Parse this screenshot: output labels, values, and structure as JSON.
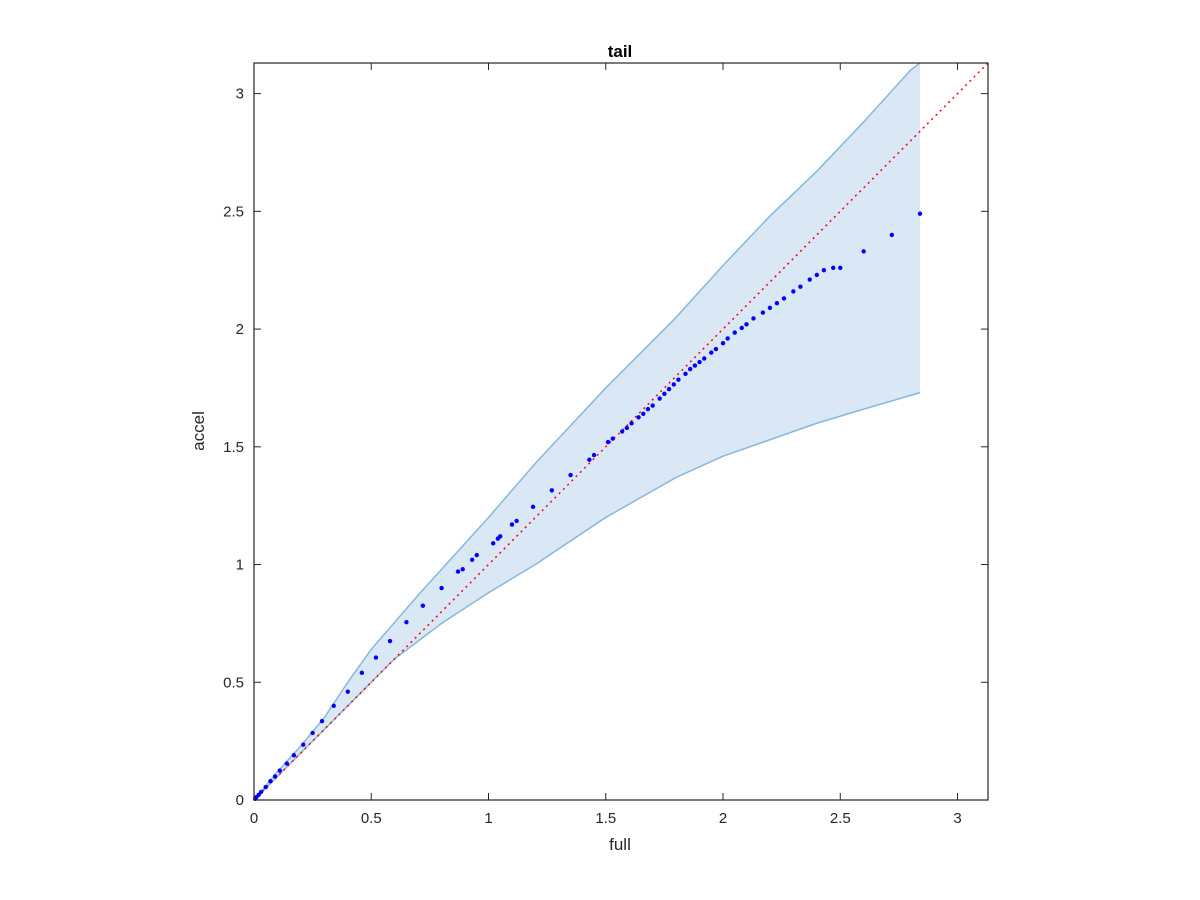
{
  "chart_data": {
    "type": "scatter",
    "title": "tail",
    "xlabel": "full",
    "ylabel": "accel",
    "xlim": [
      0,
      3.13
    ],
    "ylim": [
      0,
      3.13
    ],
    "xticks": [
      0,
      0.5,
      1,
      1.5,
      2,
      2.5,
      3
    ],
    "yticks": [
      0,
      0.5,
      1,
      1.5,
      2,
      2.5,
      3
    ],
    "xtick_labels": [
      "0",
      "0.5",
      "1",
      "1.5",
      "2",
      "2.5",
      "3"
    ],
    "ytick_labels": [
      "0",
      "0.5",
      "1",
      "1.5",
      "2",
      "2.5",
      "3"
    ],
    "grid": false,
    "colors": {
      "points": "#0000ff",
      "reference_line": "#ff0000",
      "band_fill": "#d9e8f4",
      "band_edge": "#86b8dd",
      "axes": "#262626"
    },
    "reference_line": {
      "style": "dotted",
      "points": [
        [
          0,
          0
        ],
        [
          3.13,
          3.13
        ]
      ]
    },
    "band": {
      "upper": [
        [
          0,
          0
        ],
        [
          0.05,
          0.06
        ],
        [
          0.1,
          0.12
        ],
        [
          0.2,
          0.23
        ],
        [
          0.3,
          0.35
        ],
        [
          0.4,
          0.5
        ],
        [
          0.5,
          0.64
        ],
        [
          0.7,
          0.87
        ],
        [
          1.0,
          1.2
        ],
        [
          1.2,
          1.43
        ],
        [
          1.5,
          1.75
        ],
        [
          1.8,
          2.05
        ],
        [
          2.0,
          2.27
        ],
        [
          2.2,
          2.48
        ],
        [
          2.4,
          2.67
        ],
        [
          2.6,
          2.88
        ],
        [
          2.8,
          3.1
        ],
        [
          2.84,
          3.13
        ]
      ],
      "lower": [
        [
          0,
          0
        ],
        [
          0.1,
          0.1
        ],
        [
          0.2,
          0.2
        ],
        [
          0.4,
          0.4
        ],
        [
          0.6,
          0.6
        ],
        [
          0.8,
          0.75
        ],
        [
          1.0,
          0.88
        ],
        [
          1.2,
          1.0
        ],
        [
          1.5,
          1.2
        ],
        [
          1.8,
          1.37
        ],
        [
          2.0,
          1.46
        ],
        [
          2.2,
          1.53
        ],
        [
          2.4,
          1.6
        ],
        [
          2.6,
          1.66
        ],
        [
          2.84,
          1.73
        ]
      ]
    },
    "points": [
      [
        0.005,
        0.005
      ],
      [
        0.01,
        0.012
      ],
      [
        0.02,
        0.022
      ],
      [
        0.03,
        0.034
      ],
      [
        0.05,
        0.055
      ],
      [
        0.07,
        0.08
      ],
      [
        0.09,
        0.1
      ],
      [
        0.11,
        0.125
      ],
      [
        0.14,
        0.155
      ],
      [
        0.17,
        0.19
      ],
      [
        0.21,
        0.235
      ],
      [
        0.25,
        0.285
      ],
      [
        0.29,
        0.335
      ],
      [
        0.34,
        0.4
      ],
      [
        0.4,
        0.46
      ],
      [
        0.46,
        0.54
      ],
      [
        0.52,
        0.605
      ],
      [
        0.58,
        0.675
      ],
      [
        0.65,
        0.755
      ],
      [
        0.72,
        0.825
      ],
      [
        0.8,
        0.9
      ],
      [
        0.87,
        0.97
      ],
      [
        0.89,
        0.98
      ],
      [
        0.93,
        1.02
      ],
      [
        0.95,
        1.04
      ],
      [
        1.02,
        1.09
      ],
      [
        1.04,
        1.11
      ],
      [
        1.05,
        1.12
      ],
      [
        1.1,
        1.17
      ],
      [
        1.12,
        1.185
      ],
      [
        1.19,
        1.245
      ],
      [
        1.27,
        1.315
      ],
      [
        1.35,
        1.38
      ],
      [
        1.43,
        1.445
      ],
      [
        1.45,
        1.465
      ],
      [
        1.51,
        1.52
      ],
      [
        1.53,
        1.535
      ],
      [
        1.57,
        1.565
      ],
      [
        1.59,
        1.58
      ],
      [
        1.61,
        1.6
      ],
      [
        1.64,
        1.625
      ],
      [
        1.66,
        1.64
      ],
      [
        1.68,
        1.66
      ],
      [
        1.7,
        1.675
      ],
      [
        1.73,
        1.705
      ],
      [
        1.75,
        1.725
      ],
      [
        1.77,
        1.745
      ],
      [
        1.79,
        1.765
      ],
      [
        1.81,
        1.785
      ],
      [
        1.84,
        1.81
      ],
      [
        1.86,
        1.83
      ],
      [
        1.88,
        1.845
      ],
      [
        1.9,
        1.86
      ],
      [
        1.92,
        1.875
      ],
      [
        1.95,
        1.9
      ],
      [
        1.97,
        1.915
      ],
      [
        2.0,
        1.94
      ],
      [
        2.02,
        1.96
      ],
      [
        2.05,
        1.985
      ],
      [
        2.08,
        2.005
      ],
      [
        2.1,
        2.02
      ],
      [
        2.13,
        2.045
      ],
      [
        2.17,
        2.07
      ],
      [
        2.2,
        2.09
      ],
      [
        2.23,
        2.11
      ],
      [
        2.26,
        2.13
      ],
      [
        2.3,
        2.16
      ],
      [
        2.33,
        2.18
      ],
      [
        2.37,
        2.21
      ],
      [
        2.4,
        2.23
      ],
      [
        2.43,
        2.25
      ],
      [
        2.47,
        2.26
      ],
      [
        2.5,
        2.26
      ],
      [
        2.6,
        2.33
      ],
      [
        2.72,
        2.4
      ],
      [
        2.84,
        2.49
      ]
    ]
  }
}
